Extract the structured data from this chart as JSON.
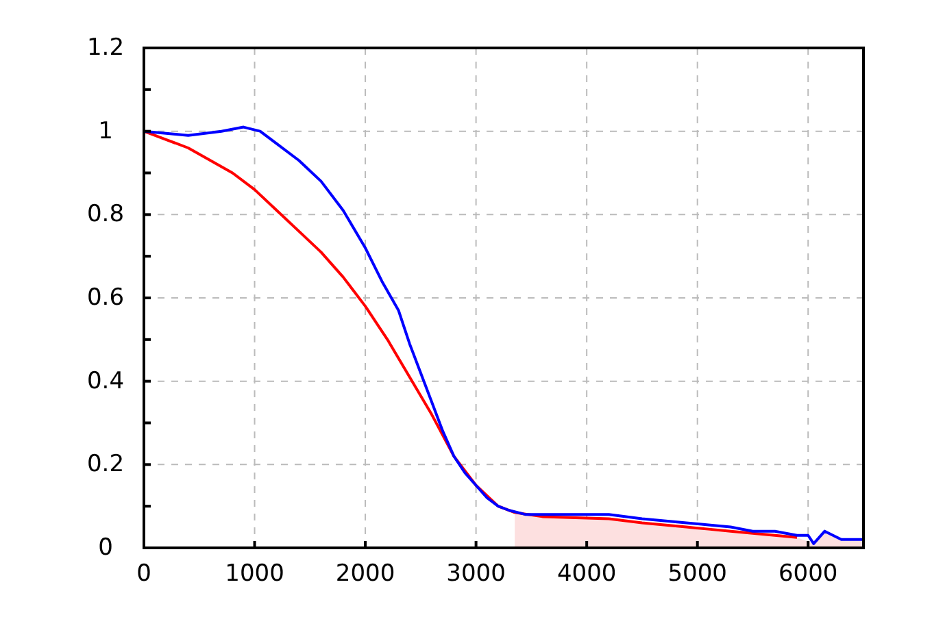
{
  "chart_data": {
    "type": "line",
    "xlim": [
      0,
      6500
    ],
    "xticks": [
      0,
      1000,
      2000,
      3000,
      4000,
      5000,
      6000
    ],
    "ylim": [
      0,
      1.2
    ],
    "yticks": [
      0,
      {
        "value": 0.1,
        "label": null
      },
      0.2,
      {
        "value": 0.3,
        "label": null
      },
      0.4,
      {
        "value": 0.5,
        "label": null
      },
      0.6,
      {
        "value": 0.7,
        "label": null
      },
      0.8,
      {
        "value": 0.9,
        "label": null
      },
      1,
      {
        "value": 1.1,
        "label": null
      },
      1.2
    ],
    "grid": true,
    "line_style": "solid",
    "series": [
      {
        "type": "area",
        "color": "#fde0e0",
        "x": [
          3350,
          3600,
          4200,
          4500,
          4700,
          4900,
          5100,
          5300,
          5500,
          5700,
          5900,
          6050,
          6150,
          6300,
          6500
        ],
        "values": [
          0.085,
          0.075,
          0.07,
          0.06,
          0.055,
          0.05,
          0.045,
          0.04,
          0.035,
          0.03,
          0.025,
          0.01,
          0.04,
          0.02,
          0.02
        ]
      },
      {
        "color": "#ff0000",
        "x": [
          0,
          200,
          400,
          600,
          800,
          1000,
          1200,
          1400,
          1600,
          1800,
          2000,
          2200,
          2400,
          2600,
          2800,
          3000,
          3200,
          3350,
          3600,
          4200,
          4500,
          4700,
          4900,
          5100,
          5300,
          5500,
          5700,
          5900
        ],
        "values": [
          1.0,
          0.98,
          0.96,
          0.93,
          0.9,
          0.86,
          0.81,
          0.76,
          0.71,
          0.65,
          0.58,
          0.5,
          0.41,
          0.32,
          0.22,
          0.15,
          0.1,
          0.085,
          0.075,
          0.07,
          0.06,
          0.055,
          0.05,
          0.045,
          0.04,
          0.035,
          0.03,
          0.025
        ]
      },
      {
        "color": "#0000ff",
        "x": [
          0,
          400,
          700,
          900,
          1050,
          1200,
          1400,
          1600,
          1800,
          2000,
          2150,
          2300,
          2400,
          2500,
          2600,
          2700,
          2800,
          2900,
          3000,
          3100,
          3200,
          3300,
          3450,
          3800,
          4200,
          4500,
          4700,
          4900,
          5100,
          5300,
          5500,
          5700,
          5900,
          6000,
          6050,
          6150,
          6300,
          6500
        ],
        "values": [
          1.0,
          0.99,
          1.0,
          1.01,
          1.0,
          0.97,
          0.93,
          0.88,
          0.81,
          0.72,
          0.64,
          0.57,
          0.49,
          0.42,
          0.35,
          0.28,
          0.22,
          0.18,
          0.15,
          0.12,
          0.1,
          0.09,
          0.08,
          0.08,
          0.08,
          0.07,
          0.065,
          0.06,
          0.055,
          0.05,
          0.04,
          0.04,
          0.03,
          0.03,
          0.01,
          0.04,
          0.02,
          0.02
        ]
      }
    ]
  }
}
